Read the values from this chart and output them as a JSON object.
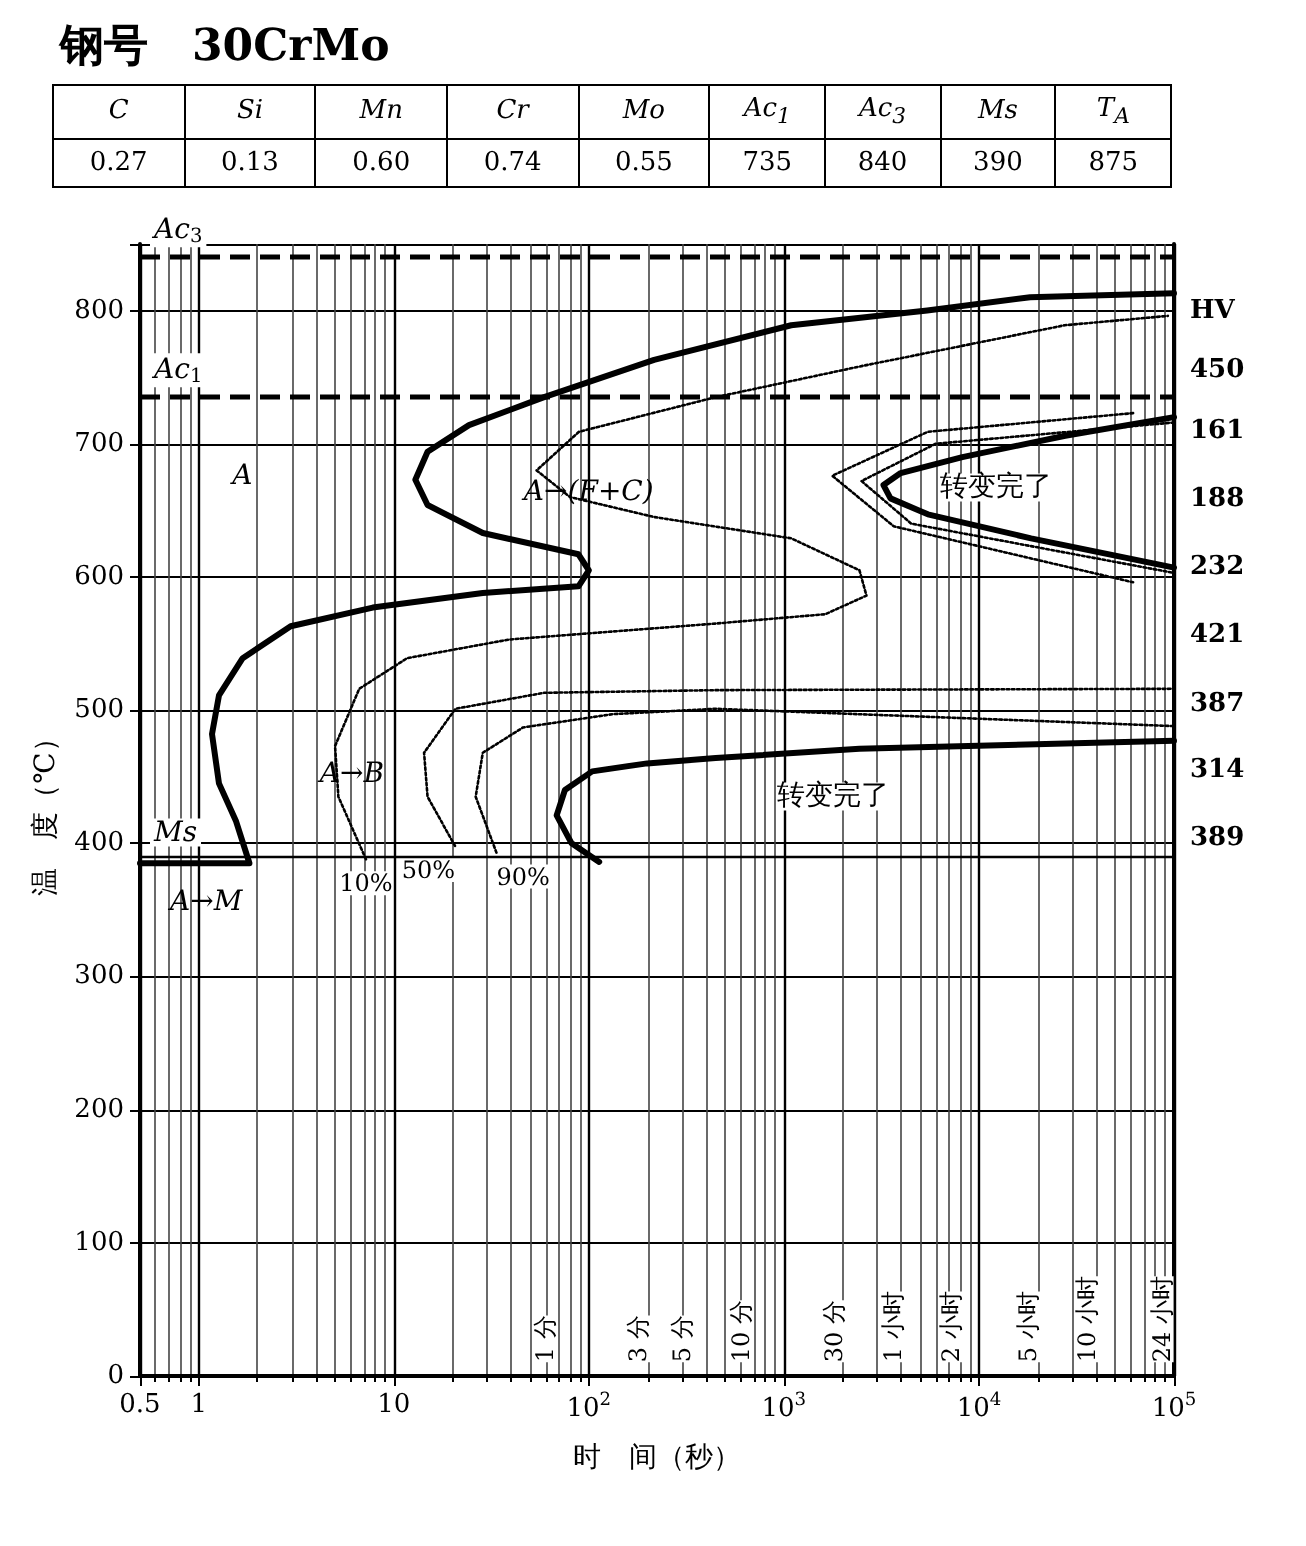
{
  "chart_data": [
    {
      "type": "other",
      "title": "钢号　30CrMo",
      "annotations": [
        "C",
        "Si",
        "Mn",
        "Cr",
        "Mo",
        "Ac$_{1}$",
        "Ac$_{3}$",
        "Ms",
        "T$_{A}$",
        "0.27",
        "0.13",
        "0.60",
        "0.74",
        "0.55",
        "735",
        "840",
        "390",
        "875"
      ]
    },
    {
      "type": "line",
      "xlabel": "时　间（秒）",
      "ylabel": "温　度（℃）",
      "log": "x",
      "grid": true,
      "legend": false,
      "marker": "none",
      "xlim": [
        0.5,
        100000
      ],
      "ylim": [
        0,
        850
      ],
      "xticks": [
        0.5,
        1,
        10,
        {
          "value": 100,
          "label": "10$^{2}$"
        },
        {
          "value": 1000,
          "label": "10$^{3}$"
        },
        {
          "value": 10000,
          "label": "10$^{4}$"
        },
        {
          "value": 100000,
          "label": "10$^{5}$"
        }
      ],
      "yticks": [
        0,
        100,
        200,
        300,
        400,
        500,
        600,
        700,
        800
      ],
      "ref_lines": [
        {
          "axis": "y",
          "value": 840,
          "label": "Ac$_{3}$",
          "line_style": "dashed",
          "color": "#000000"
        },
        {
          "axis": "y",
          "value": 735,
          "label": "Ac$_{1}$",
          "line_style": "dashed",
          "color": "#000000"
        },
        {
          "axis": "y",
          "value": 390,
          "label": "Ms",
          "line_style": "solid",
          "color": "#000000"
        }
      ],
      "annotations": [
        "A",
        "A→(F+C)",
        "A→B",
        "A→M",
        "转变完了",
        "转变完了",
        "1 分",
        "3 分",
        "5 分",
        "10 分",
        "30 分",
        "1 小时",
        "2 小时",
        "5 小时",
        "10 小时",
        "24 小时",
        "HV",
        "450",
        "161",
        "188",
        "232",
        "421",
        "387",
        "314",
        "389"
      ],
      "series": [
        {
          "color": "#000000",
          "line_style": "solid",
          "x": [
            0.5,
            1.82,
            1.55,
            1.27,
            1.17,
            1.27,
            1.68,
            2.96,
            7.8,
            28.6,
            88.5,
            100,
            88.5,
            28.6,
            14.9,
            12.9,
            14.9,
            24.3,
            59,
            216,
            1090,
            5430,
            18300,
            100000
          ],
          "values": [
            385,
            385,
            417,
            445,
            482,
            511,
            539,
            563,
            577,
            588,
            593,
            605,
            617,
            633,
            654,
            673,
            694,
            714,
            735,
            763,
            789,
            800,
            810,
            813
          ]
        },
        {
          "color": "#000000",
          "line_style": "solid",
          "x": [
            100000,
            27700,
            8220,
            3970,
            3240,
            3520,
            5470,
            18500,
            100000
          ],
          "values": [
            720,
            706,
            690,
            678,
            669,
            659,
            647,
            629,
            607
          ]
        },
        {
          "color": "#000000",
          "line_style": "solid",
          "x": [
            113,
            81.6,
            68.4,
            75.4,
            104,
            199,
            447,
            2440,
            100000
          ],
          "values": [
            386,
            400,
            421,
            440,
            454,
            460,
            464,
            471,
            477
          ]
        },
        {
          "name": "10%",
          "color": "#000000",
          "line_style": "dotted",
          "x": [
            7.2,
            5.2,
            5,
            6.65,
            11.7,
            39,
            447,
            1630,
            2650,
            2440,
            1090,
            216,
            80,
            54,
            89,
            447,
            2440,
            27500,
            93000
          ],
          "values": [
            388,
            435,
            473,
            516,
            539,
            553,
            565,
            572,
            586,
            605,
            629,
            645,
            660,
            680,
            709,
            735,
            758,
            789,
            796
          ]
        },
        {
          "name": "50%",
          "color": "#000000",
          "line_style": "dotted",
          "x": [
            20.6,
            14.9,
            14.3,
            20.7,
            59,
            447,
            100000
          ],
          "values": [
            398,
            435,
            468,
            501,
            513,
            515,
            516
          ]
        },
        {
          "name": "90%",
          "color": "#000000",
          "line_style": "dotted",
          "x": [
            33.6,
            26.3,
            28.6,
            46,
            133,
            447,
            100000
          ],
          "values": [
            393,
            435,
            468,
            487,
            497,
            501,
            488
          ]
        },
        {
          "color": "#000000",
          "line_style": "dotted",
          "x": [
            61700,
            5470,
            1770,
            3660,
            61700
          ],
          "values": [
            723,
            709,
            676,
            638,
            596
          ]
        },
        {
          "color": "#000000",
          "line_style": "dotted",
          "x": [
            100000,
            6000,
            2500,
            4500,
            100000
          ],
          "values": [
            716,
            700,
            672,
            640,
            603
          ]
        }
      ]
    }
  ]
}
